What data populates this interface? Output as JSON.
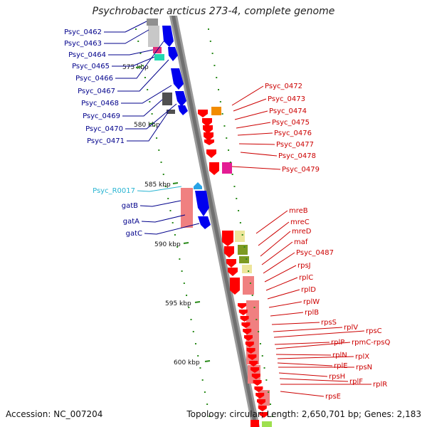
{
  "title": "Psychrobacter arcticus 273-4, complete genome",
  "footer": {
    "accession": "Accession: NC_007204",
    "summary": "Topology: circular; Length: 2,650,701 bp; Genes: 2,183"
  },
  "axis_labels": [
    "575 kbp",
    "580 kbp",
    "585 kbp",
    "590 kbp",
    "595 kbp",
    "600 kbp"
  ],
  "colors": {
    "left_label": "#00008b",
    "rna_label": "#28b4d2",
    "right_label": "#cc0000",
    "backbone": "#8c8c8c",
    "tick": "#2a8a1a"
  },
  "left_labels": [
    "Psyc_0462",
    "Psyc_0463",
    "Psyc_0464",
    "Psyc_0465",
    "Psyc_0466",
    "Psyc_0467",
    "Psyc_0468",
    "Psyc_0469",
    "Psyc_0470",
    "Psyc_0471",
    "Psyc_R0017",
    "gatB",
    "gatA",
    "gatC"
  ],
  "right_labels": [
    "Psyc_0472",
    "Psyc_0473",
    "Psyc_0474",
    "Psyc_0475",
    "Psyc_0476",
    "Psyc_0477",
    "Psyc_0478",
    "Psyc_0479",
    "mreB",
    "mreC",
    "mreD",
    "maf",
    "Psyc_0487",
    "rpsJ",
    "rplC",
    "rplD",
    "rplW",
    "rplB",
    "rpsS",
    "rplV",
    "rpsC",
    "rplP",
    "rpmC-rpsQ",
    "rplN",
    "rplX",
    "rplE",
    "rpsN",
    "rpsH",
    "rplF",
    "rplR",
    "rpsE"
  ]
}
